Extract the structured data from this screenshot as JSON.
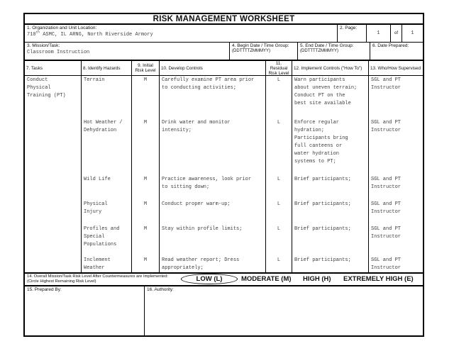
{
  "colors": {
    "border": "#000000",
    "background": "#ffffff",
    "typed_text": "#3f3f3f",
    "label_text": "#111111"
  },
  "title": "RISK MANAGEMENT WORKSHEET",
  "header_fields": {
    "organization": {
      "label": "1. Organization and Unit Location:",
      "value_base": "710",
      "value_superscript": "th",
      "value_rest": " ASMC, IL ARNG, North Riverside Armory"
    },
    "page": {
      "label": "2. Page:",
      "current": "1",
      "of_word": "of",
      "total": "1"
    },
    "mission": {
      "label": "3. Mission/Task:",
      "value": "Classroom Instruction"
    },
    "begin_date": {
      "label": "4. Begin Date / Time Group:",
      "format_hint": "(DDTTTTZMMMYY)"
    },
    "end_date": {
      "label": "5.  End Date / Time Group:",
      "format_hint": "(DDTTTTZMMMYY)"
    },
    "date_prepared": {
      "label": "6.  Date Prepared:"
    }
  },
  "table": {
    "headers": [
      "7. Tasks",
      "8.  Identify Hazards",
      "9. Initial Risk Level",
      "10.  Develop Controls",
      "11. Residual Risk Level",
      "12. Implement Controls (\"How To\")",
      "13. Who/How Supervised"
    ],
    "task": "Conduct\nPhysical\nTraining (PT)",
    "rows": [
      {
        "hazard": "Terrain",
        "initial_risk": "M",
        "controls": "Carefully examine PT area prior\nto conducting activities;",
        "residual_risk": "L",
        "implement": "Warn participants\nabout uneven terrain;\nConduct PT on the\nbest site available",
        "supervision": "SGL and PT\nInstructor"
      },
      {
        "hazard": "Hot Weather /\nDehydration",
        "initial_risk": "M",
        "controls": "Drink water and monitor\nintensity;",
        "residual_risk": "L",
        "implement": "Enforce regular\nhydration;\nParticipants bring\nfull canteens or\nwater hydration\nsystems to PT;",
        "supervision": "SGL and PT\nInstructor"
      },
      {
        "hazard": "Wild Life",
        "initial_risk": "M",
        "controls": "Practice awareness, look prior\nto sitting down;",
        "residual_risk": "L",
        "implement": "Brief participants;",
        "supervision": "SGL and PT\nInstructor"
      },
      {
        "hazard": "Physical\nInjury",
        "initial_risk": "M",
        "controls": "Conduct proper warm-up;",
        "residual_risk": "L",
        "implement": "Brief participants;",
        "supervision": "SGL and PT\nInstructor"
      },
      {
        "hazard": "Profiles and\nSpecial\nPopulations",
        "initial_risk": "M",
        "controls": "Stay within profile limits;",
        "residual_risk": "L",
        "implement": "Brief participants;",
        "supervision": "SGL and PT\nInstructor"
      },
      {
        "hazard": "Inclement\nWeather",
        "initial_risk": "M",
        "controls": "Read weather report; Dress\nappropriately;",
        "residual_risk": "L",
        "implement": "Brief participants;",
        "supervision": "SGL and PT\nInstructor"
      }
    ]
  },
  "overall_risk": {
    "label_line1": "14. Overall Mission/Task Risk Level After Countermeasures are Implemented:",
    "label_line2": "(Circle Highest Remaining Risk Level)",
    "options": [
      "LOW (L)",
      "MODERATE (M)",
      "HIGH (H)",
      "EXTREMELY HIGH (E)"
    ],
    "circled": "LOW (L)"
  },
  "footer": {
    "prepared_by_label": "15. Prepared By:",
    "authority_label": "16. Authority:"
  }
}
